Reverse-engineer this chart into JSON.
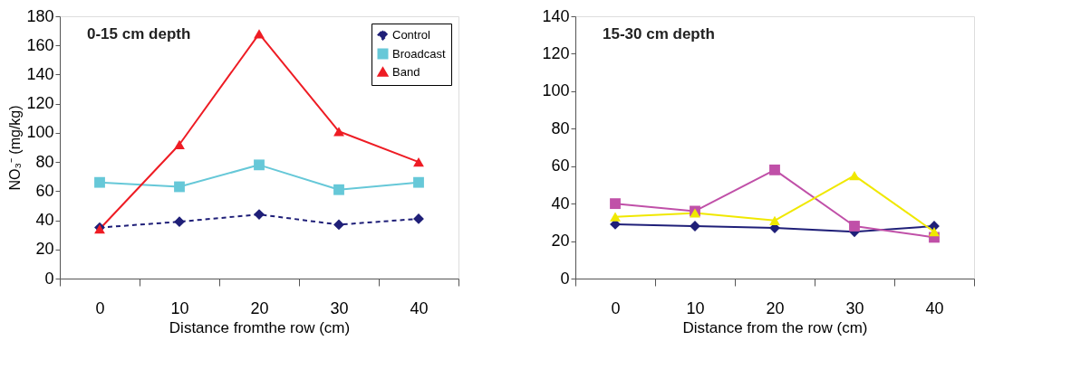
{
  "chart_data": [
    {
      "type": "line",
      "title": "0-15 cm depth",
      "xlabel": "Distance fromthe row (cm)",
      "ylabel": "NO₃⁻ (mg/kg)",
      "categories": [
        "0",
        "10",
        "20",
        "30",
        "40"
      ],
      "ylim": [
        0,
        180
      ],
      "yticks": [
        0,
        20,
        40,
        60,
        80,
        100,
        120,
        140,
        160,
        180
      ],
      "legend": "top right",
      "series": [
        {
          "name": "Control",
          "color": "#1f1f78",
          "marker": "diamond",
          "line_style": "dashed",
          "values": [
            35,
            39,
            44,
            37,
            41
          ]
        },
        {
          "name": "Broadcast",
          "color": "#66c8d8",
          "marker": "square",
          "line_style": "solid",
          "values": [
            66,
            63,
            78,
            61,
            66
          ]
        },
        {
          "name": "Band",
          "color": "#ee1c24",
          "marker": "triangle",
          "line_style": "solid",
          "values": [
            34,
            92,
            168,
            101,
            80
          ]
        }
      ]
    },
    {
      "type": "line",
      "title": "15-30 cm depth",
      "xlabel": "Distance from the  row (cm)",
      "categories": [
        "0",
        "10",
        "20",
        "30",
        "40"
      ],
      "ylim": [
        0,
        140
      ],
      "yticks": [
        0,
        20,
        40,
        60,
        80,
        100,
        120,
        140
      ],
      "series": [
        {
          "color": "#1f1f78",
          "marker": "diamond",
          "line_style": "solid",
          "values": [
            29,
            28,
            27,
            25,
            28
          ]
        },
        {
          "color": "#c050a8",
          "marker": "square",
          "line_style": "solid",
          "values": [
            40,
            36,
            58,
            28,
            22
          ]
        },
        {
          "color": "#f0e800",
          "marker": "triangle",
          "line_style": "solid",
          "values": [
            33,
            35,
            31,
            55,
            25
          ]
        }
      ]
    }
  ]
}
